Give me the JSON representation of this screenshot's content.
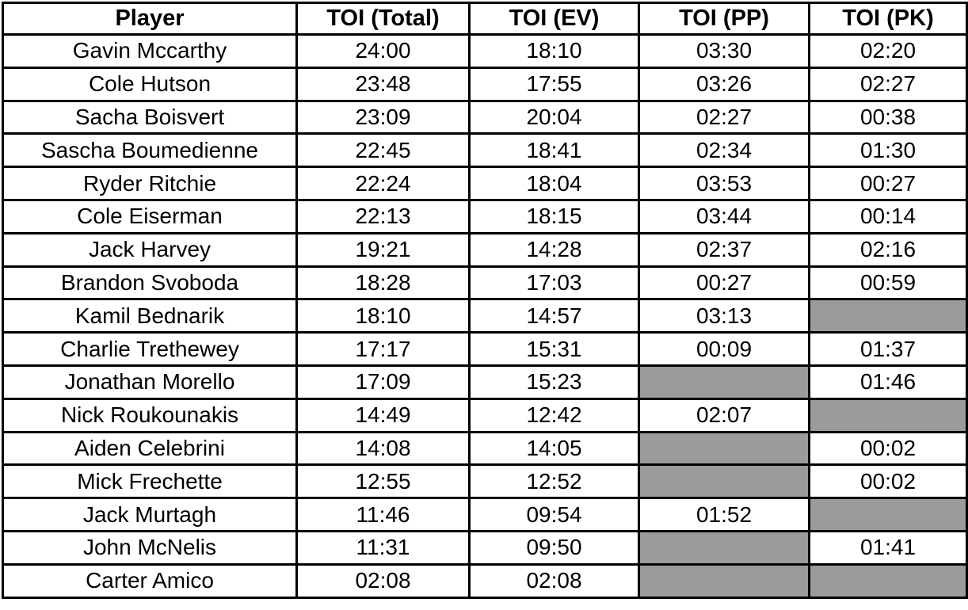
{
  "table": {
    "columns": [
      "Player",
      "TOI (Total)",
      "TOI (EV)",
      "TOI (PP)",
      "TOI (PK)"
    ],
    "rows": [
      [
        "Gavin Mccarthy",
        "24:00",
        "18:10",
        "03:30",
        "02:20"
      ],
      [
        "Cole Hutson",
        "23:48",
        "17:55",
        "03:26",
        "02:27"
      ],
      [
        "Sacha Boisvert",
        "23:09",
        "20:04",
        "02:27",
        "00:38"
      ],
      [
        "Sascha Boumedienne",
        "22:45",
        "18:41",
        "02:34",
        "01:30"
      ],
      [
        "Ryder Ritchie",
        "22:24",
        "18:04",
        "03:53",
        "00:27"
      ],
      [
        "Cole Eiserman",
        "22:13",
        "18:15",
        "03:44",
        "00:14"
      ],
      [
        "Jack Harvey",
        "19:21",
        "14:28",
        "02:37",
        "02:16"
      ],
      [
        "Brandon Svoboda",
        "18:28",
        "17:03",
        "00:27",
        "00:59"
      ],
      [
        "Kamil Bednarik",
        "18:10",
        "14:57",
        "03:13",
        null
      ],
      [
        "Charlie Trethewey",
        "17:17",
        "15:31",
        "00:09",
        "01:37"
      ],
      [
        "Jonathan Morello",
        "17:09",
        "15:23",
        null,
        "01:46"
      ],
      [
        "Nick Roukounakis",
        "14:49",
        "12:42",
        "02:07",
        null
      ],
      [
        "Aiden Celebrini",
        "14:08",
        "14:05",
        null,
        "00:02"
      ],
      [
        "Mick Frechette",
        "12:55",
        "12:52",
        null,
        "00:02"
      ],
      [
        "Jack Murtagh",
        "11:46",
        "09:54",
        "01:52",
        null
      ],
      [
        "John McNelis",
        "11:31",
        "09:50",
        null,
        "01:41"
      ],
      [
        "Carter Amico",
        "02:08",
        "02:08",
        null,
        null
      ]
    ],
    "colors": {
      "empty_cell": "#9b9b9b",
      "border": "#000000",
      "text": "#000000",
      "background": "#ffffff"
    }
  }
}
